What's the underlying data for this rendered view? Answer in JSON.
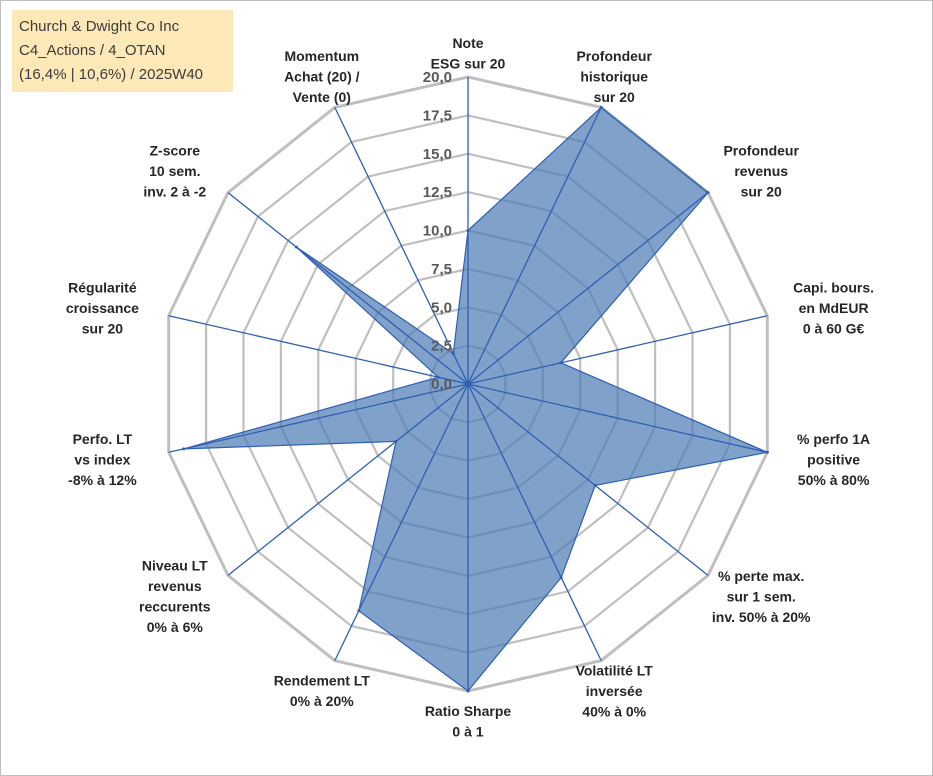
{
  "title_box": {
    "line1": "Church & Dwight Co Inc",
    "line2": "C4_Actions / 4_OTAN",
    "line3": "(16,4% | 10,6%) / 2025W40"
  },
  "colors": {
    "fill": "#4f7db6",
    "fill_opacity": 0.72,
    "spoke": "#2f5fb3",
    "grid": "#bfbfbf",
    "title_bg": "#fde9b8"
  },
  "chart_data": {
    "type": "radar",
    "title": "",
    "rmin": 0,
    "rmax": 20,
    "ticks": [
      "0,0",
      "2,5",
      "5,0",
      "7,5",
      "10,0",
      "12,5",
      "15,0",
      "17,5",
      "20,0"
    ],
    "tick_values": [
      0,
      2.5,
      5,
      7.5,
      10,
      12.5,
      15,
      17.5,
      20
    ],
    "axes": [
      {
        "label": [
          "Note",
          "ESG sur 20"
        ]
      },
      {
        "label": [
          "Profondeur",
          "historique",
          "sur 20"
        ]
      },
      {
        "label": [
          "Profondeur",
          "revenus",
          "sur 20"
        ]
      },
      {
        "label": [
          "Capi. bours.",
          "en MdEUR",
          "0 à 60 G€"
        ]
      },
      {
        "label": [
          "% perfo 1A",
          "positive",
          "50% à 80%"
        ]
      },
      {
        "label": [
          "% perte max.",
          "sur 1 sem.",
          "inv. 50% à 20%"
        ]
      },
      {
        "label": [
          "Volatilité LT",
          "inversée",
          "40% à 0%"
        ]
      },
      {
        "label": [
          "Ratio Sharpe",
          "0 à 1"
        ]
      },
      {
        "label": [
          "Rendement LT",
          "0% à 20%"
        ]
      },
      {
        "label": [
          "Niveau LT",
          "revenus",
          "reccurents",
          "0% à 6%"
        ]
      },
      {
        "label": [
          "Perfo. LT",
          "vs index",
          "-8% à 12%"
        ]
      },
      {
        "label": [
          "Régularité",
          "croissance",
          "sur 20"
        ]
      },
      {
        "label": [
          "Z-score",
          "10 sem.",
          "inv. 2 à -2"
        ]
      },
      {
        "label": [
          "Momentum",
          "Achat (20) /",
          "Vente (0)"
        ]
      }
    ],
    "series": [
      {
        "name": "Church & Dwight Co Inc",
        "values": [
          10.0,
          20.0,
          20.0,
          6.2,
          20.0,
          10.6,
          14.0,
          20.0,
          16.4,
          6.0,
          19.0,
          2.0,
          14.3,
          2.2
        ]
      }
    ]
  }
}
